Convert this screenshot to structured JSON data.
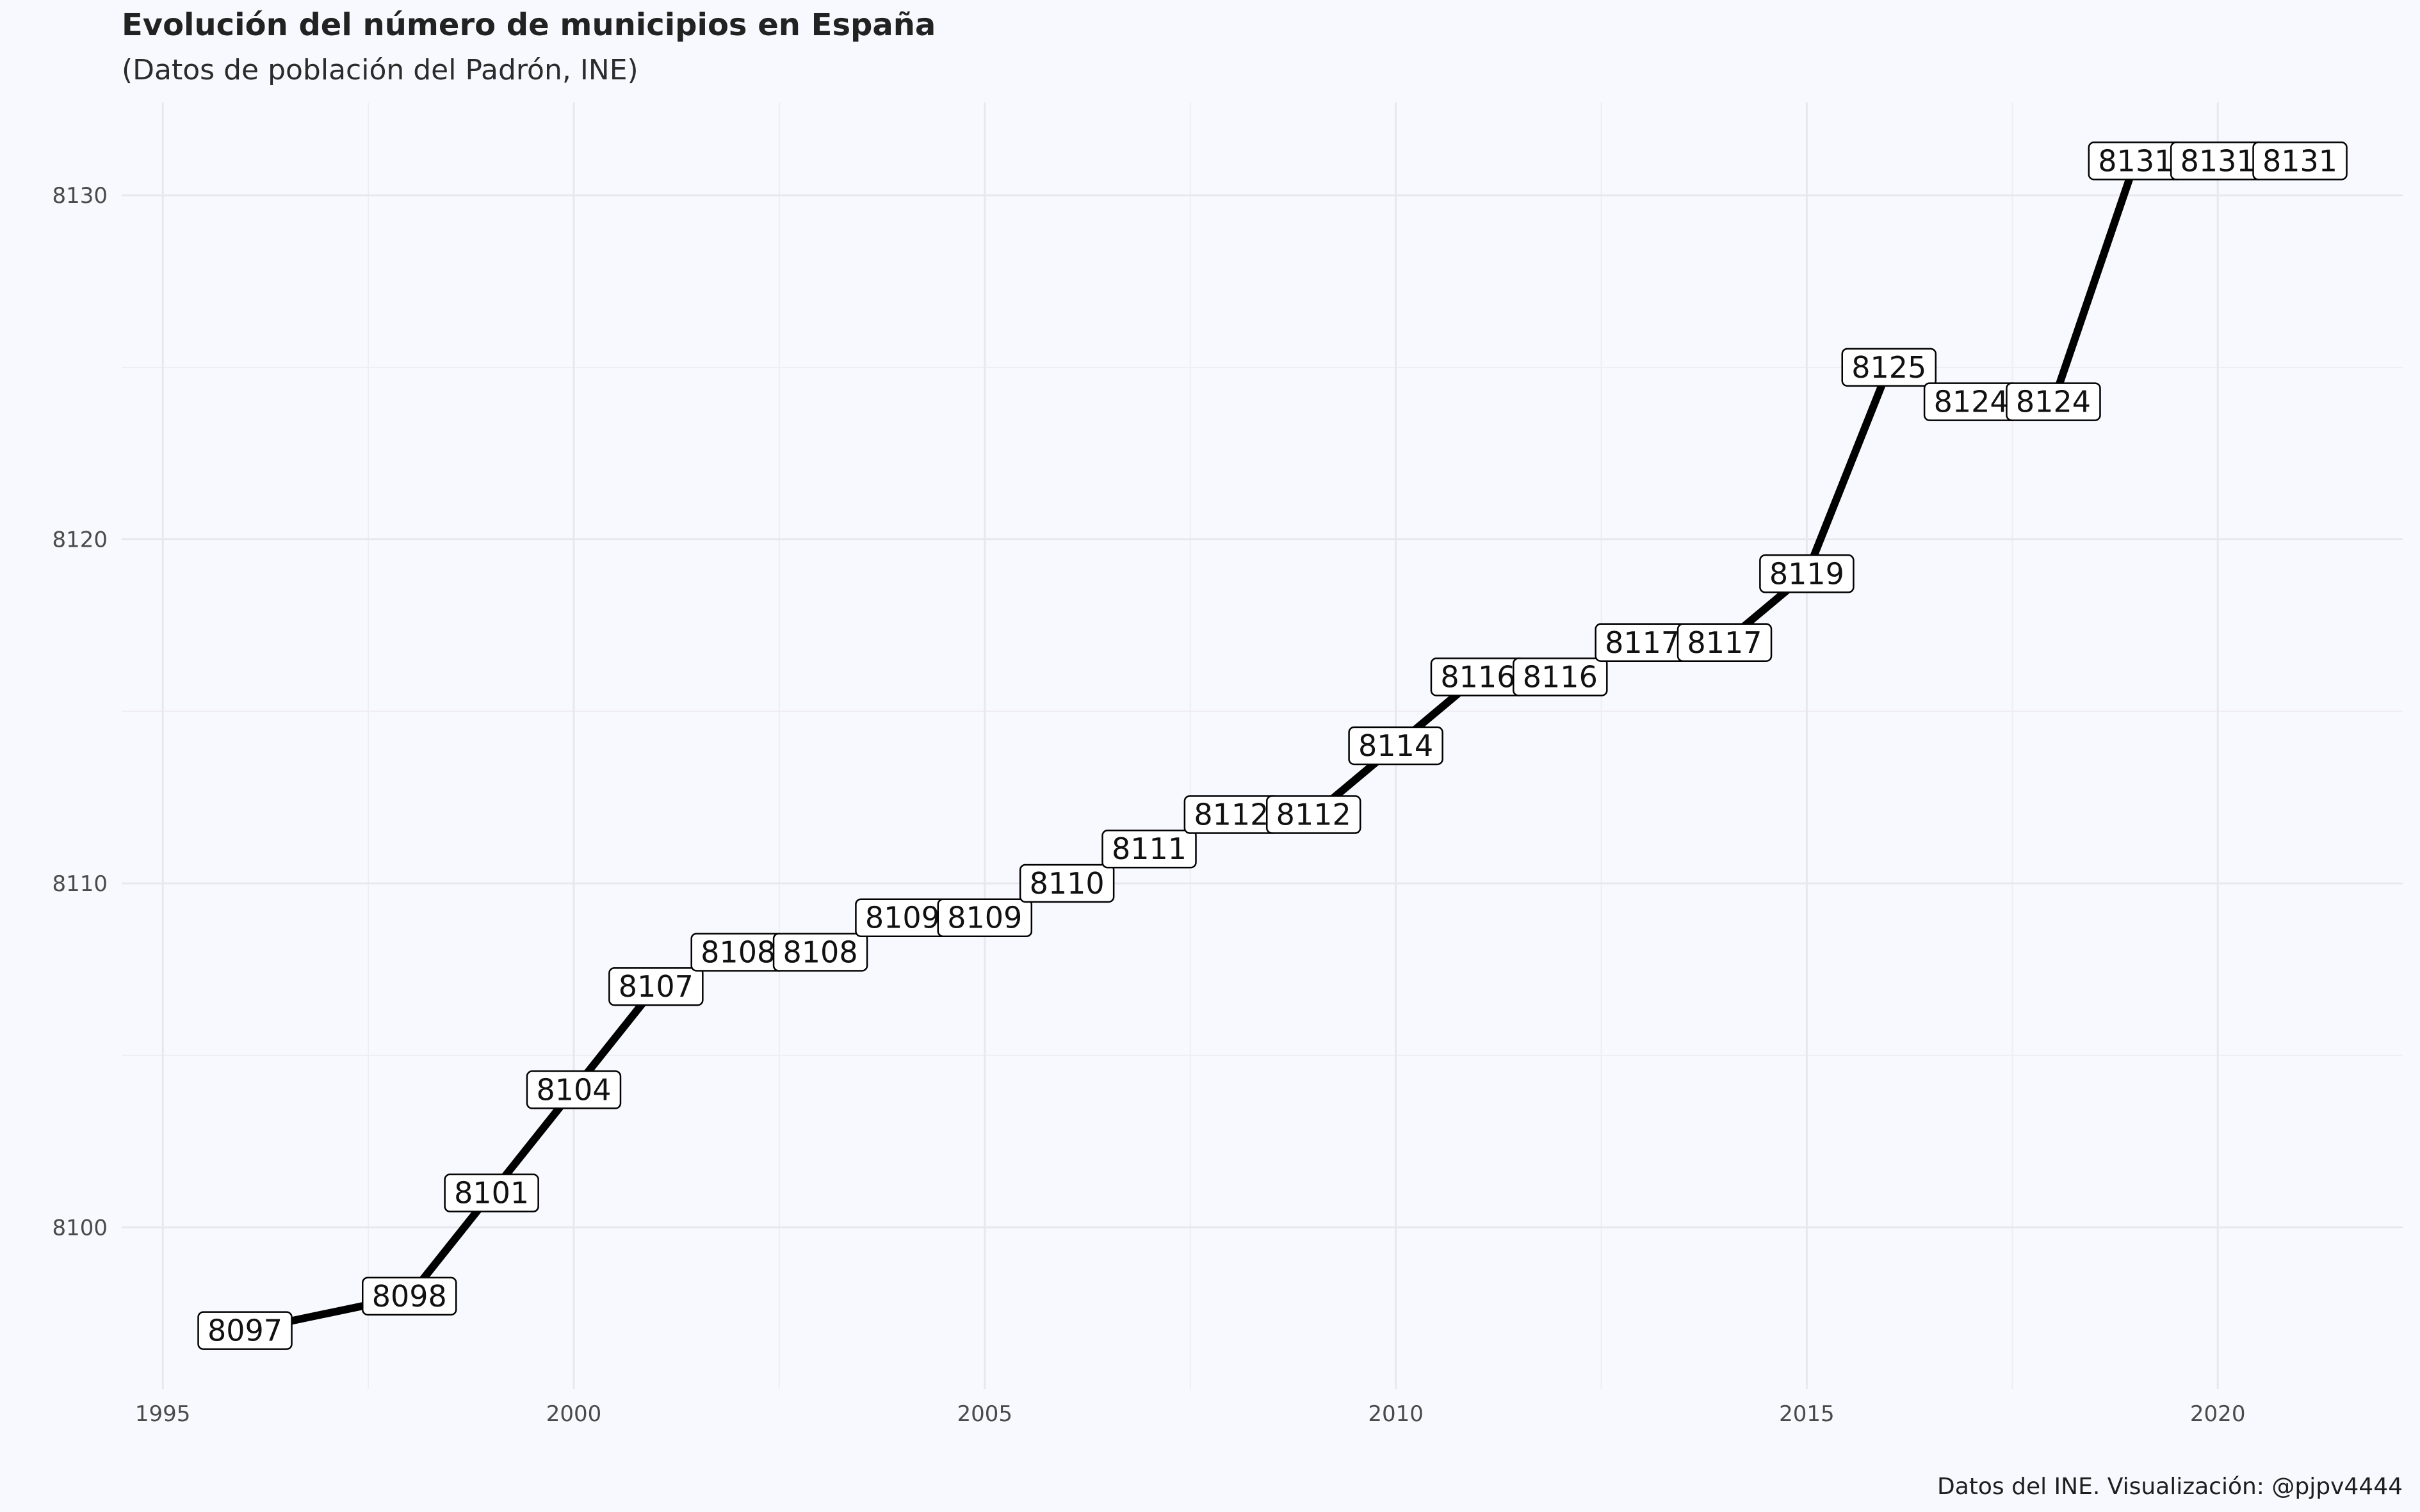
{
  "chart_data": {
    "type": "line",
    "title": "Evolución del número de municipios en España",
    "subtitle": "(Datos de población del Padrón, INE)",
    "caption": "Datos del INE. Visualización: @pjpv4444",
    "xlabel": "",
    "ylabel": "",
    "x": [
      1996,
      1998,
      1999,
      2000,
      2001,
      2002,
      2003,
      2004,
      2005,
      2006,
      2007,
      2008,
      2009,
      2010,
      2011,
      2012,
      2013,
      2014,
      2015,
      2016,
      2017,
      2018,
      2019,
      2020,
      2021
    ],
    "values": [
      8097,
      8098,
      8101,
      8104,
      8107,
      8108,
      8108,
      8109,
      8109,
      8110,
      8111,
      8112,
      8112,
      8114,
      8116,
      8116,
      8117,
      8117,
      8119,
      8125,
      8124,
      8124,
      8131,
      8131,
      8131
    ],
    "data_labels": [
      "8097",
      "8098",
      "8101",
      "8104",
      "8107",
      "8108",
      "8108",
      "8109",
      "8109",
      "8110",
      "8111",
      "8112",
      "8112",
      "8114",
      "8116",
      "8116",
      "8117",
      "8117",
      "8119",
      "8125",
      "8124",
      "8124",
      "8131",
      "8131",
      "8131"
    ],
    "xlim": [
      1994.5,
      2022.25
    ],
    "ylim": [
      8095.3,
      8132.7
    ],
    "x_ticks": [
      1995,
      2000,
      2005,
      2010,
      2015,
      2020
    ],
    "x_tick_labels": [
      "1995",
      "2000",
      "2005",
      "2010",
      "2015",
      "2020"
    ],
    "y_ticks": [
      8100,
      8110,
      8120,
      8130
    ],
    "y_tick_labels": [
      "8100",
      "8110",
      "8120",
      "8130"
    ],
    "grid": true,
    "legend": "none",
    "line_color": "#000000",
    "background_color": "#f8f9fe"
  }
}
